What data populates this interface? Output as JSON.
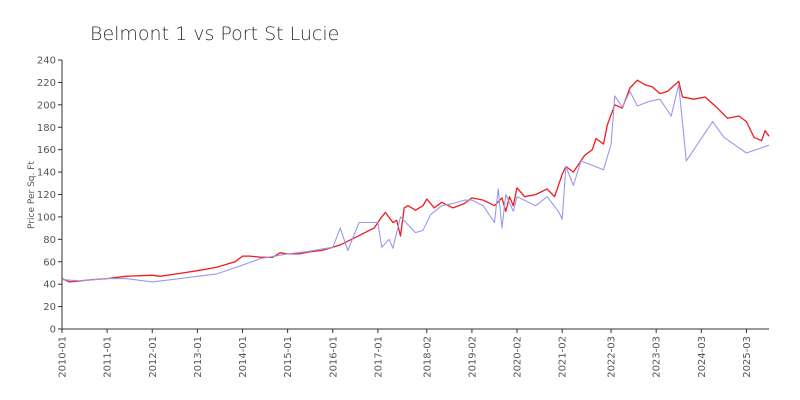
{
  "chart_data": {
    "type": "line",
    "title": "Belmont 1 vs Port St Lucie",
    "xlabel": "",
    "ylabel": "Price Per Sq. Ft",
    "ylim": [
      0,
      240
    ],
    "yticks": [
      0,
      20,
      40,
      60,
      80,
      100,
      120,
      140,
      160,
      180,
      200,
      220,
      240
    ],
    "xlim": [
      "2010-01",
      "2025-09"
    ],
    "xtick_labels": [
      "2010-01",
      "2011-01",
      "2012-01",
      "2013-01",
      "2014-01",
      "2015-01",
      "2016-01",
      "2017-01",
      "2018-02",
      "2019-02",
      "2020-02",
      "2021-02",
      "2022-03",
      "2023-03",
      "2024-03",
      "2025-03"
    ],
    "grid": false,
    "legend": null,
    "series": [
      {
        "color": "#ee1c1c",
        "points": [
          [
            "2010-01",
            45
          ],
          [
            "2010-03",
            42
          ],
          [
            "2010-06",
            43
          ],
          [
            "2010-09",
            44
          ],
          [
            "2011-01",
            45
          ],
          [
            "2011-06",
            47
          ],
          [
            "2012-01",
            48
          ],
          [
            "2012-03",
            47
          ],
          [
            "2012-09",
            50
          ],
          [
            "2013-01",
            52
          ],
          [
            "2013-06",
            55
          ],
          [
            "2013-09",
            58
          ],
          [
            "2013-11",
            60
          ],
          [
            "2014-01",
            65
          ],
          [
            "2014-03",
            65
          ],
          [
            "2014-06",
            64
          ],
          [
            "2014-09",
            64
          ],
          [
            "2014-11",
            68
          ],
          [
            "2015-01",
            67
          ],
          [
            "2015-04",
            67
          ],
          [
            "2015-07",
            69
          ],
          [
            "2015-10",
            70
          ],
          [
            "2016-01",
            73
          ],
          [
            "2016-03",
            75
          ],
          [
            "2016-06",
            80
          ],
          [
            "2016-09",
            85
          ],
          [
            "2016-12",
            90
          ],
          [
            "2017-02",
            100
          ],
          [
            "2017-03",
            104
          ],
          [
            "2017-05",
            95
          ],
          [
            "2017-06",
            97
          ],
          [
            "2017-07",
            83
          ],
          [
            "2017-08",
            108
          ],
          [
            "2017-09",
            110
          ],
          [
            "2017-11",
            106
          ],
          [
            "2018-01",
            110
          ],
          [
            "2018-02",
            116
          ],
          [
            "2018-04",
            108
          ],
          [
            "2018-06",
            113
          ],
          [
            "2018-09",
            108
          ],
          [
            "2018-12",
            112
          ],
          [
            "2019-02",
            117
          ],
          [
            "2019-05",
            115
          ],
          [
            "2019-08",
            110
          ],
          [
            "2019-10",
            117
          ],
          [
            "2019-11",
            105
          ],
          [
            "2019-12",
            118
          ],
          [
            "2020-01",
            110
          ],
          [
            "2020-02",
            126
          ],
          [
            "2020-04",
            118
          ],
          [
            "2020-07",
            120
          ],
          [
            "2020-10",
            125
          ],
          [
            "2020-12",
            118
          ],
          [
            "2021-02",
            138
          ],
          [
            "2021-03",
            145
          ],
          [
            "2021-05",
            140
          ],
          [
            "2021-08",
            155
          ],
          [
            "2021-10",
            160
          ],
          [
            "2021-11",
            170
          ],
          [
            "2022-01",
            165
          ],
          [
            "2022-02",
            182
          ],
          [
            "2022-04",
            200
          ],
          [
            "2022-06",
            197
          ],
          [
            "2022-08",
            215
          ],
          [
            "2022-10",
            222
          ],
          [
            "2022-12",
            218
          ],
          [
            "2023-02",
            216
          ],
          [
            "2023-04",
            210
          ],
          [
            "2023-06",
            212
          ],
          [
            "2023-09",
            221
          ],
          [
            "2023-10",
            207
          ],
          [
            "2024-01",
            205
          ],
          [
            "2024-04",
            207
          ],
          [
            "2024-07",
            198
          ],
          [
            "2024-10",
            188
          ],
          [
            "2025-01",
            190
          ],
          [
            "2025-03",
            185
          ],
          [
            "2025-05",
            171
          ],
          [
            "2025-07",
            168
          ],
          [
            "2025-08",
            177
          ],
          [
            "2025-09",
            172
          ]
        ]
      },
      {
        "color": "#9999ee",
        "points": [
          [
            "2010-01",
            44
          ],
          [
            "2010-06",
            43
          ],
          [
            "2011-01",
            45
          ],
          [
            "2011-06",
            45
          ],
          [
            "2012-01",
            42
          ],
          [
            "2012-06",
            44
          ],
          [
            "2013-01",
            47
          ],
          [
            "2013-06",
            49
          ],
          [
            "2014-01",
            57
          ],
          [
            "2014-06",
            63
          ],
          [
            "2015-01",
            67
          ],
          [
            "2015-06",
            69
          ],
          [
            "2016-01",
            73
          ],
          [
            "2016-03",
            90
          ],
          [
            "2016-05",
            70
          ],
          [
            "2016-08",
            95
          ],
          [
            "2017-01",
            95
          ],
          [
            "2017-02",
            73
          ],
          [
            "2017-04",
            80
          ],
          [
            "2017-05",
            72
          ],
          [
            "2017-07",
            100
          ],
          [
            "2017-11",
            86
          ],
          [
            "2018-01",
            88
          ],
          [
            "2018-03",
            102
          ],
          [
            "2018-06",
            110
          ],
          [
            "2018-09",
            112
          ],
          [
            "2018-12",
            115
          ],
          [
            "2019-02",
            115
          ],
          [
            "2019-05",
            110
          ],
          [
            "2019-07",
            100
          ],
          [
            "2019-08",
            95
          ],
          [
            "2019-09",
            125
          ],
          [
            "2019-10",
            90
          ],
          [
            "2019-11",
            120
          ],
          [
            "2020-01",
            105
          ],
          [
            "2020-02",
            118
          ],
          [
            "2020-07",
            110
          ],
          [
            "2020-10",
            118
          ],
          [
            "2021-01",
            105
          ],
          [
            "2021-02",
            98
          ],
          [
            "2021-03",
            145
          ],
          [
            "2021-05",
            128
          ],
          [
            "2021-07",
            150
          ],
          [
            "2021-10",
            146
          ],
          [
            "2022-01",
            142
          ],
          [
            "2022-03",
            165
          ],
          [
            "2022-04",
            208
          ],
          [
            "2022-06",
            198
          ],
          [
            "2022-08",
            212
          ],
          [
            "2022-10",
            199
          ],
          [
            "2023-01",
            203
          ],
          [
            "2023-04",
            205
          ],
          [
            "2023-07",
            190
          ],
          [
            "2023-09",
            218
          ],
          [
            "2023-11",
            150
          ],
          [
            "2024-06",
            185
          ],
          [
            "2024-09",
            171
          ],
          [
            "2025-03",
            157
          ],
          [
            "2025-09",
            164
          ]
        ]
      }
    ]
  }
}
